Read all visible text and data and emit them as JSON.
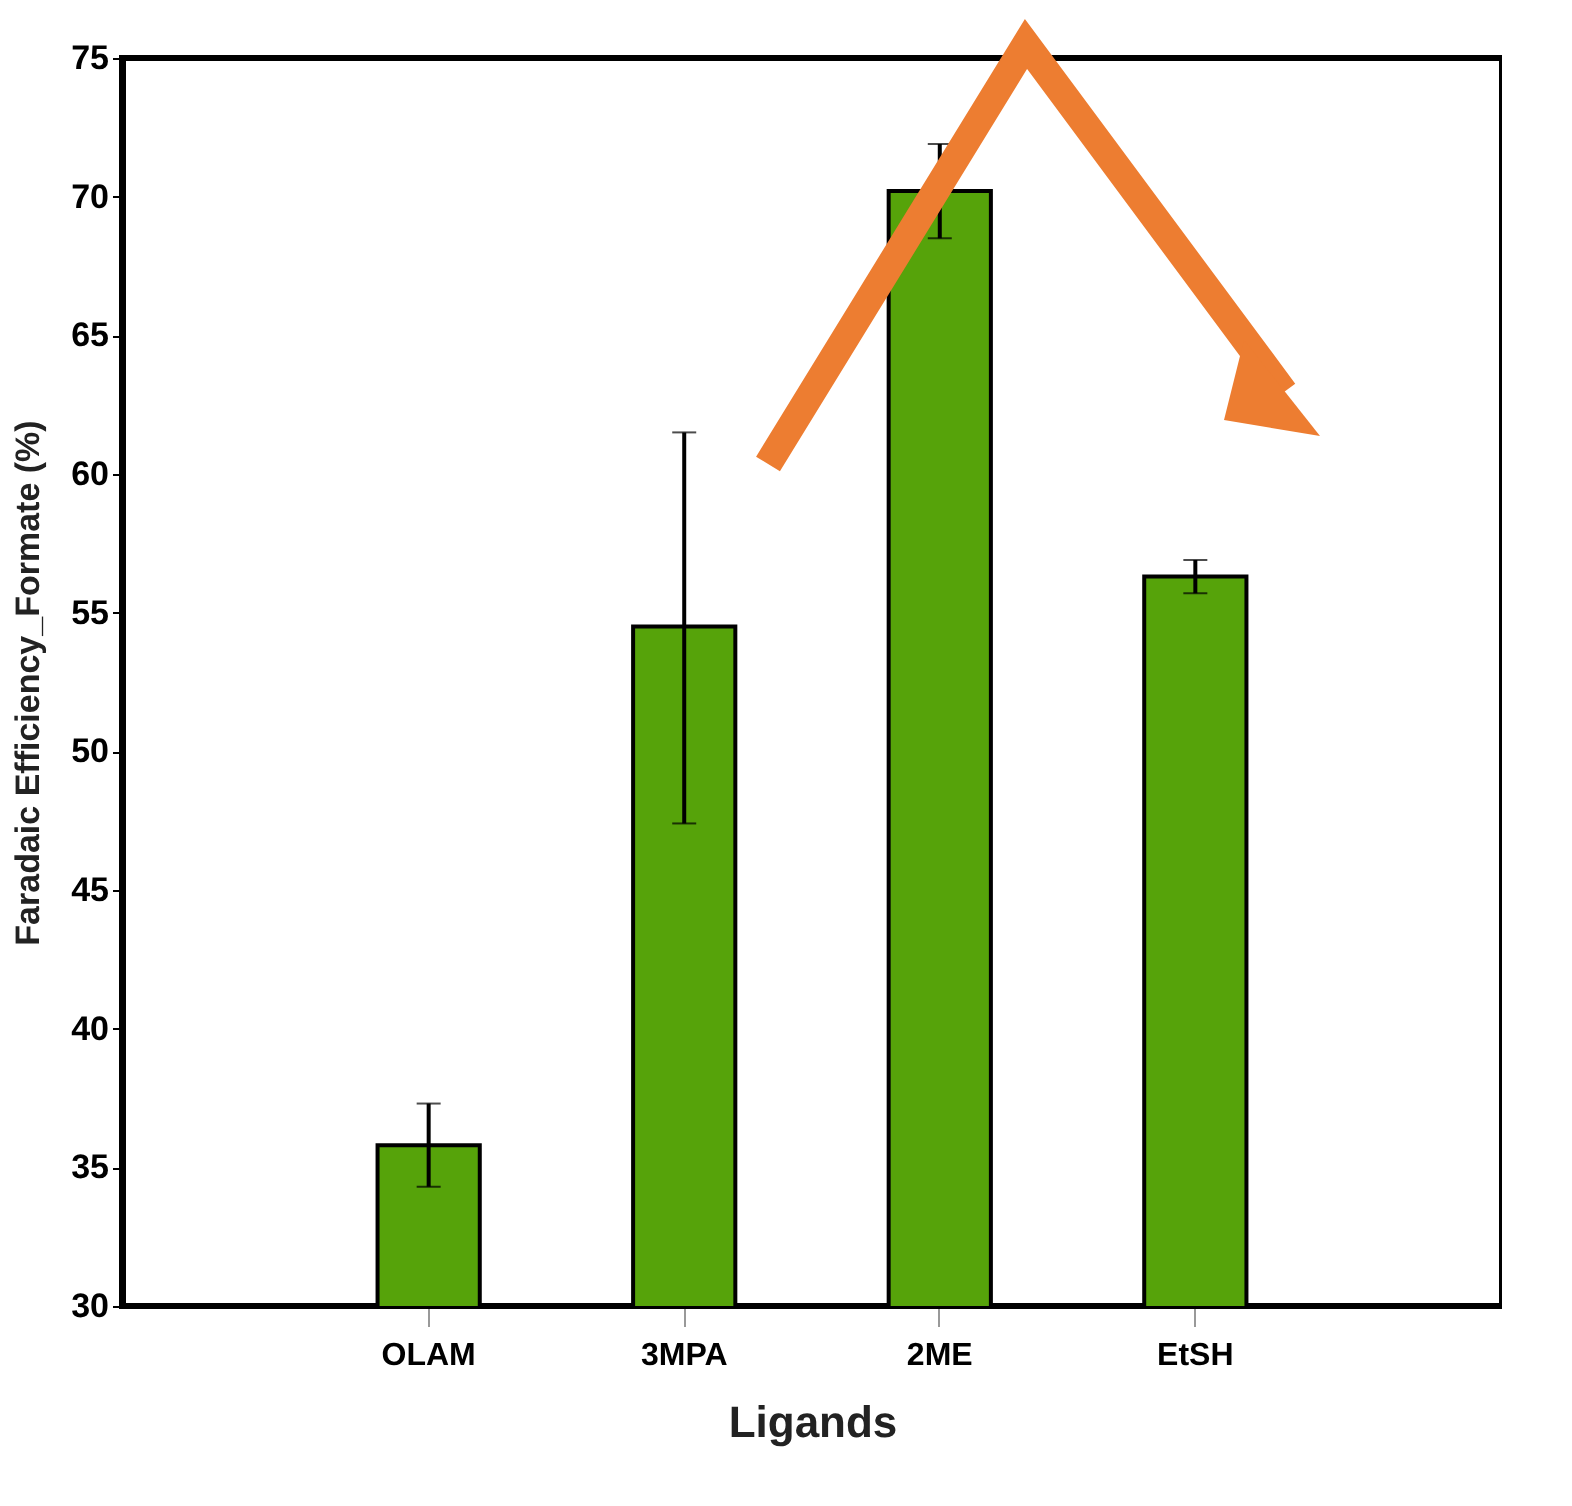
{
  "chart_data": {
    "type": "bar",
    "xlabel": "Ligands",
    "ylabel": "Faradaic Efficiency_Formate (%)",
    "categories": [
      "OLAM",
      "3MPA",
      "2ME",
      "EtSH"
    ],
    "values": [
      35.8,
      54.5,
      70.2,
      56.3
    ],
    "errors": [
      [
        34.3,
        37.3
      ],
      [
        47.4,
        61.5
      ],
      [
        68.5,
        71.9
      ],
      [
        55.7,
        56.9
      ]
    ],
    "color": "#56a30a",
    "ylim": [
      30,
      75
    ],
    "yticks": [
      30,
      35,
      40,
      45,
      50,
      55,
      60,
      65,
      70,
      75
    ],
    "grid": false
  }
}
